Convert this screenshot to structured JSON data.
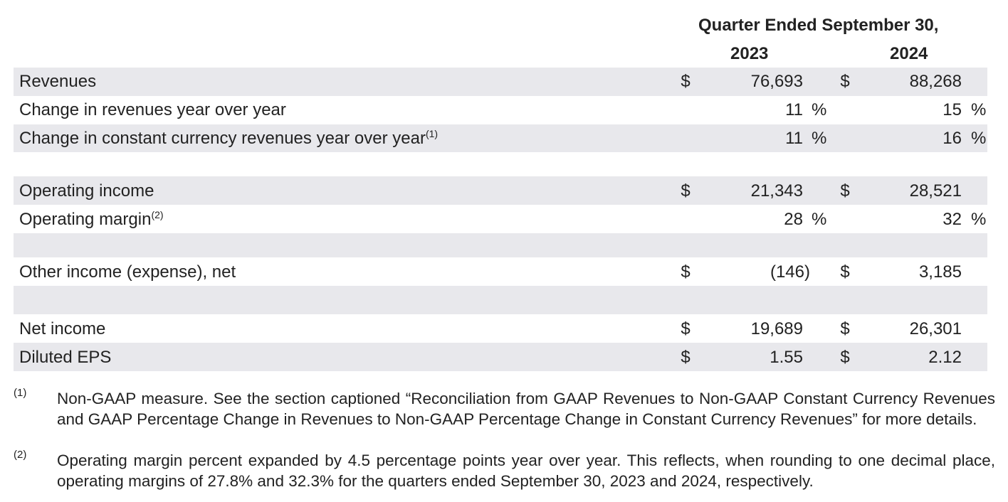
{
  "header": {
    "title": "Quarter Ended September 30,",
    "years": [
      "2023",
      "2024"
    ]
  },
  "table": {
    "rows": [
      {
        "label": "Revenues",
        "cells": [
          {
            "currency": "$",
            "value": "76,693"
          },
          {
            "currency": "$",
            "value": "88,268"
          }
        ]
      },
      {
        "label": "Change in revenues year over year",
        "cells": [
          {
            "value": "11",
            "unit": "%"
          },
          {
            "value": "15",
            "unit": "%"
          }
        ]
      },
      {
        "label": "Change in constant currency revenues year over year",
        "note": "(1)",
        "cells": [
          {
            "value": "11",
            "unit": "%"
          },
          {
            "value": "16",
            "unit": "%"
          }
        ]
      },
      {
        "label": "Operating income",
        "cells": [
          {
            "currency": "$",
            "value": "21,343"
          },
          {
            "currency": "$",
            "value": "28,521"
          }
        ]
      },
      {
        "label": "Operating margin",
        "note": "(2)",
        "cells": [
          {
            "value": "28",
            "unit": "%"
          },
          {
            "value": "32",
            "unit": "%"
          }
        ]
      },
      {
        "label": "Other income (expense), net",
        "cells": [
          {
            "currency": "$",
            "value": "(146)"
          },
          {
            "currency": "$",
            "value": "3,185"
          }
        ]
      },
      {
        "label": "Net income",
        "cells": [
          {
            "currency": "$",
            "value": "19,689"
          },
          {
            "currency": "$",
            "value": "26,301"
          }
        ]
      },
      {
        "label": "Diluted EPS",
        "cells": [
          {
            "currency": "$",
            "value": "1.55"
          },
          {
            "currency": "$",
            "value": "2.12"
          }
        ]
      }
    ]
  },
  "footnotes": [
    {
      "marker": "(1)",
      "text": "Non-GAAP measure. See the section captioned “Reconciliation from GAAP Revenues to Non-GAAP Constant Currency Revenues and GAAP Percentage Change in Revenues to Non-GAAP Percentage Change in Constant Currency Revenues” for more details."
    },
    {
      "marker": "(2)",
      "text": "Operating margin percent expanded by 4.5 percentage points year over year. This reflects, when rounding to one decimal place, operating margins of 27.8% and 32.3% for the quarters ended September 30, 2023 and 2024, respectively."
    }
  ]
}
